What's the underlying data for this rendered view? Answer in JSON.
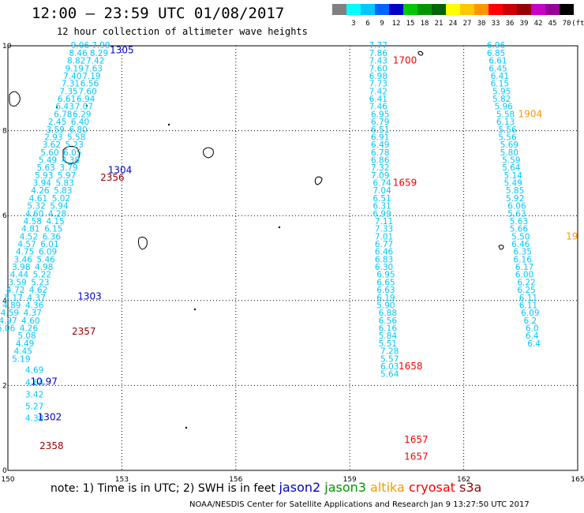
{
  "title": "12:00 – 23:59 UTC 01/08/2017",
  "subtitle": "12 hour collection of altimeter wave heights",
  "colorbar": {
    "unit_label": "(ft)",
    "swatches": [
      {
        "label": "",
        "color": "#808080"
      },
      {
        "label": "3",
        "color": "#00ffff"
      },
      {
        "label": "6",
        "color": "#00c8ff"
      },
      {
        "label": "9",
        "color": "#0064ff"
      },
      {
        "label": "12",
        "color": "#0000c8"
      },
      {
        "label": "15",
        "color": "#00c800"
      },
      {
        "label": "18",
        "color": "#009600"
      },
      {
        "label": "21",
        "color": "#006400"
      },
      {
        "label": "24",
        "color": "#ffff00"
      },
      {
        "label": "27",
        "color": "#ffc800"
      },
      {
        "label": "30",
        "color": "#ff9600"
      },
      {
        "label": "33",
        "color": "#ff0000"
      },
      {
        "label": "36",
        "color": "#c80000"
      },
      {
        "label": "39",
        "color": "#960000"
      },
      {
        "label": "42",
        "color": "#c800c8"
      },
      {
        "label": "45",
        "color": "#960096"
      },
      {
        "label": "70",
        "color": "#000000"
      }
    ]
  },
  "axes": {
    "x_ticks": [
      "150",
      "153",
      "156",
      "159",
      "162",
      "165"
    ],
    "y_ticks": [
      "0",
      "2",
      "4",
      "6",
      "8",
      "10"
    ],
    "x_range": [
      150,
      165
    ],
    "y_range": [
      0,
      10
    ]
  },
  "tracks": [
    {
      "name": "western",
      "color": "#00c8ff",
      "points": [
        {
          "lon": 152.45,
          "lat": 9.94,
          "v": "7.99"
        },
        {
          "lon": 152.4,
          "lat": 9.76,
          "v": "8.29"
        },
        {
          "lon": 152.3,
          "lat": 9.58,
          "v": "7.42"
        },
        {
          "lon": 152.25,
          "lat": 9.4,
          "v": "7.63"
        },
        {
          "lon": 152.2,
          "lat": 9.22,
          "v": "7.19"
        },
        {
          "lon": 152.15,
          "lat": 9.04,
          "v": "6.56"
        },
        {
          "lon": 152.1,
          "lat": 8.86,
          "v": "7.60"
        },
        {
          "lon": 152.05,
          "lat": 8.68,
          "v": "6.94"
        },
        {
          "lon": 152.0,
          "lat": 8.5,
          "v": "7.07"
        },
        {
          "lon": 151.95,
          "lat": 8.32,
          "v": "6.29"
        },
        {
          "lon": 151.9,
          "lat": 8.14,
          "v": "6.40"
        },
        {
          "lon": 151.85,
          "lat": 7.96,
          "v": "6.80"
        },
        {
          "lon": 151.8,
          "lat": 7.78,
          "v": "5.58"
        },
        {
          "lon": 151.75,
          "lat": 7.6,
          "v": "5.23"
        },
        {
          "lon": 151.7,
          "lat": 7.42,
          "v": "6.05"
        },
        {
          "lon": 151.65,
          "lat": 7.24,
          "v": "4.38"
        },
        {
          "lon": 151.6,
          "lat": 7.06,
          "v": "3.79"
        },
        {
          "lon": 151.55,
          "lat": 6.88,
          "v": "5.97"
        },
        {
          "lon": 151.5,
          "lat": 6.7,
          "v": "5.83"
        },
        {
          "lon": 151.45,
          "lat": 6.52,
          "v": "5.83"
        },
        {
          "lon": 151.4,
          "lat": 6.34,
          "v": "5.02"
        },
        {
          "lon": 151.35,
          "lat": 6.16,
          "v": "5.94"
        },
        {
          "lon": 151.3,
          "lat": 5.98,
          "v": "4.28"
        },
        {
          "lon": 151.25,
          "lat": 5.8,
          "v": "4.15"
        },
        {
          "lon": 151.2,
          "lat": 5.62,
          "v": "6.15"
        },
        {
          "lon": 151.15,
          "lat": 5.44,
          "v": "6.36"
        },
        {
          "lon": 151.1,
          "lat": 5.26,
          "v": "6.01"
        },
        {
          "lon": 151.05,
          "lat": 5.08,
          "v": "6.09"
        },
        {
          "lon": 151.0,
          "lat": 4.9,
          "v": "5.46"
        },
        {
          "lon": 150.95,
          "lat": 4.72,
          "v": "4.98"
        },
        {
          "lon": 150.9,
          "lat": 4.54,
          "v": "5.22"
        },
        {
          "lon": 150.85,
          "lat": 4.36,
          "v": "5.23"
        },
        {
          "lon": 150.8,
          "lat": 4.18,
          "v": "4.62"
        },
        {
          "lon": 150.75,
          "lat": 4.0,
          "v": "4.37"
        },
        {
          "lon": 150.7,
          "lat": 3.82,
          "v": "4.36"
        },
        {
          "lon": 150.65,
          "lat": 3.64,
          "v": "4.37"
        },
        {
          "lon": 150.6,
          "lat": 3.46,
          "v": "4.60"
        },
        {
          "lon": 150.55,
          "lat": 3.28,
          "v": "4.26"
        },
        {
          "lon": 150.5,
          "lat": 3.1,
          "v": "5.08"
        },
        {
          "lon": 150.45,
          "lat": 2.92,
          "v": "4.49"
        },
        {
          "lon": 150.4,
          "lat": 2.74,
          "v": "4.45"
        },
        {
          "lon": 150.35,
          "lat": 2.56,
          "v": "5.19"
        },
        {
          "lon": 150.7,
          "lat": 2.3,
          "v": "4.69"
        },
        {
          "lon": 150.7,
          "lat": 2.0,
          "v": "4.64"
        },
        {
          "lon": 150.7,
          "lat": 1.72,
          "v": "3.42"
        },
        {
          "lon": 150.7,
          "lat": 1.44,
          "v": "5.27"
        },
        {
          "lon": 150.7,
          "lat": 1.16,
          "v": "4.38"
        }
      ]
    },
    {
      "name": "western-2",
      "color": "#00c8ff",
      "points": [
        {
          "lon": 151.9,
          "lat": 9.94,
          "v": "9.06"
        },
        {
          "lon": 151.85,
          "lat": 9.76,
          "v": "8.46"
        },
        {
          "lon": 151.8,
          "lat": 9.58,
          "v": "8.82"
        },
        {
          "lon": 151.75,
          "lat": 9.4,
          "v": "9.19"
        },
        {
          "lon": 151.7,
          "lat": 9.22,
          "v": "7.40"
        },
        {
          "lon": 151.65,
          "lat": 9.04,
          "v": "7.31"
        },
        {
          "lon": 151.6,
          "lat": 8.86,
          "v": "7.35"
        },
        {
          "lon": 151.55,
          "lat": 8.68,
          "v": "6.61"
        },
        {
          "lon": 151.5,
          "lat": 8.5,
          "v": "6.43"
        },
        {
          "lon": 151.45,
          "lat": 8.32,
          "v": "6.78"
        },
        {
          "lon": 151.3,
          "lat": 8.14,
          "v": "2.45"
        },
        {
          "lon": 151.25,
          "lat": 7.96,
          "v": "3.59"
        },
        {
          "lon": 151.2,
          "lat": 7.78,
          "v": "2.93"
        },
        {
          "lon": 151.15,
          "lat": 7.6,
          "v": "3.62"
        },
        {
          "lon": 151.1,
          "lat": 7.42,
          "v": "5.60"
        },
        {
          "lon": 151.05,
          "lat": 7.24,
          "v": "5.49"
        },
        {
          "lon": 151.0,
          "lat": 7.06,
          "v": "5.63"
        },
        {
          "lon": 150.95,
          "lat": 6.88,
          "v": "5.93"
        },
        {
          "lon": 150.9,
          "lat": 6.7,
          "v": "3.94"
        },
        {
          "lon": 150.85,
          "lat": 6.52,
          "v": "4.26"
        },
        {
          "lon": 150.8,
          "lat": 6.34,
          "v": "4.61"
        },
        {
          "lon": 150.75,
          "lat": 6.16,
          "v": "5.32"
        },
        {
          "lon": 150.7,
          "lat": 5.98,
          "v": "4.60"
        },
        {
          "lon": 150.65,
          "lat": 5.8,
          "v": "4.58"
        },
        {
          "lon": 150.6,
          "lat": 5.62,
          "v": "4.81"
        },
        {
          "lon": 150.55,
          "lat": 5.44,
          "v": "4.52"
        },
        {
          "lon": 150.5,
          "lat": 5.26,
          "v": "4.57"
        },
        {
          "lon": 150.45,
          "lat": 5.08,
          "v": "4.75"
        },
        {
          "lon": 150.4,
          "lat": 4.9,
          "v": "3.46"
        },
        {
          "lon": 150.35,
          "lat": 4.72,
          "v": "3.98"
        },
        {
          "lon": 150.3,
          "lat": 4.54,
          "v": "4.44"
        },
        {
          "lon": 150.25,
          "lat": 4.36,
          "v": "3.59"
        },
        {
          "lon": 150.2,
          "lat": 4.18,
          "v": "4.72"
        },
        {
          "lon": 150.15,
          "lat": 4.0,
          "v": "5.17"
        },
        {
          "lon": 150.1,
          "lat": 3.82,
          "v": "4.89"
        },
        {
          "lon": 150.05,
          "lat": 3.64,
          "v": "4.59"
        },
        {
          "lon": 150.0,
          "lat": 3.46,
          "v": "4.97"
        },
        {
          "lon": 149.95,
          "lat": 3.28,
          "v": "6.06"
        }
      ]
    },
    {
      "name": "center",
      "color": "#00c8ff",
      "points": [
        {
          "lon": 159.75,
          "lat": 9.94,
          "v": "7.77"
        },
        {
          "lon": 159.75,
          "lat": 9.76,
          "v": "7.86"
        },
        {
          "lon": 159.75,
          "lat": 9.58,
          "v": "7.43"
        },
        {
          "lon": 159.75,
          "lat": 9.4,
          "v": "7.60"
        },
        {
          "lon": 159.75,
          "lat": 9.22,
          "v": "6.98"
        },
        {
          "lon": 159.75,
          "lat": 9.04,
          "v": "7.73"
        },
        {
          "lon": 159.75,
          "lat": 8.86,
          "v": "7.42"
        },
        {
          "lon": 159.75,
          "lat": 8.68,
          "v": "6.41"
        },
        {
          "lon": 159.75,
          "lat": 8.5,
          "v": "7.46"
        },
        {
          "lon": 159.8,
          "lat": 8.32,
          "v": "6.95"
        },
        {
          "lon": 159.8,
          "lat": 8.14,
          "v": "6.79"
        },
        {
          "lon": 159.8,
          "lat": 7.96,
          "v": "6.51"
        },
        {
          "lon": 159.8,
          "lat": 7.78,
          "v": "6.91"
        },
        {
          "lon": 159.8,
          "lat": 7.6,
          "v": "6.49"
        },
        {
          "lon": 159.8,
          "lat": 7.42,
          "v": "6.78"
        },
        {
          "lon": 159.8,
          "lat": 7.24,
          "v": "6.86"
        },
        {
          "lon": 159.8,
          "lat": 7.06,
          "v": "7.32"
        },
        {
          "lon": 159.8,
          "lat": 6.88,
          "v": "7.09"
        },
        {
          "lon": 159.85,
          "lat": 6.7,
          "v": "6.74"
        },
        {
          "lon": 159.85,
          "lat": 6.52,
          "v": "7.04"
        },
        {
          "lon": 159.85,
          "lat": 6.34,
          "v": "6.51"
        },
        {
          "lon": 159.85,
          "lat": 6.16,
          "v": "6.31"
        },
        {
          "lon": 159.85,
          "lat": 5.98,
          "v": "6.99"
        },
        {
          "lon": 159.9,
          "lat": 5.8,
          "v": "7.11"
        },
        {
          "lon": 159.9,
          "lat": 5.62,
          "v": "7.33"
        },
        {
          "lon": 159.9,
          "lat": 5.44,
          "v": "7.01"
        },
        {
          "lon": 159.9,
          "lat": 5.26,
          "v": "6.77"
        },
        {
          "lon": 159.9,
          "lat": 5.08,
          "v": "6.46"
        },
        {
          "lon": 159.9,
          "lat": 4.9,
          "v": "6.83"
        },
        {
          "lon": 159.9,
          "lat": 4.72,
          "v": "6.30"
        },
        {
          "lon": 159.95,
          "lat": 4.54,
          "v": "6.95"
        },
        {
          "lon": 159.95,
          "lat": 4.36,
          "v": "6.65"
        },
        {
          "lon": 159.95,
          "lat": 4.18,
          "v": "6.63"
        },
        {
          "lon": 159.95,
          "lat": 4.0,
          "v": "6.19"
        },
        {
          "lon": 159.95,
          "lat": 3.82,
          "v": "5.90"
        },
        {
          "lon": 160.0,
          "lat": 3.64,
          "v": "6.88"
        },
        {
          "lon": 160.0,
          "lat": 3.46,
          "v": "6.56"
        },
        {
          "lon": 160.0,
          "lat": 3.28,
          "v": "6.16"
        },
        {
          "lon": 160.0,
          "lat": 3.1,
          "v": "5.84"
        },
        {
          "lon": 160.0,
          "lat": 2.92,
          "v": "5.51"
        },
        {
          "lon": 160.05,
          "lat": 2.74,
          "v": "7.28"
        },
        {
          "lon": 160.05,
          "lat": 2.56,
          "v": "5.57"
        },
        {
          "lon": 160.05,
          "lat": 2.38,
          "v": "6.03"
        },
        {
          "lon": 160.05,
          "lat": 2.2,
          "v": "5.64"
        }
      ]
    },
    {
      "name": "eastern",
      "color": "#00c8ff",
      "points": [
        {
          "lon": 162.85,
          "lat": 9.94,
          "v": "6.96"
        },
        {
          "lon": 162.85,
          "lat": 9.76,
          "v": "6.85"
        },
        {
          "lon": 162.9,
          "lat": 9.58,
          "v": "6.61"
        },
        {
          "lon": 162.9,
          "lat": 9.4,
          "v": "6.45"
        },
        {
          "lon": 162.95,
          "lat": 9.22,
          "v": "6.41"
        },
        {
          "lon": 162.95,
          "lat": 9.04,
          "v": "6.15"
        },
        {
          "lon": 163.0,
          "lat": 8.86,
          "v": "5.95"
        },
        {
          "lon": 163.0,
          "lat": 8.68,
          "v": "5.82"
        },
        {
          "lon": 163.05,
          "lat": 8.5,
          "v": "5.96"
        },
        {
          "lon": 163.1,
          "lat": 8.32,
          "v": "5.58"
        },
        {
          "lon": 163.1,
          "lat": 8.14,
          "v": "6.13"
        },
        {
          "lon": 163.15,
          "lat": 7.96,
          "v": "5.56"
        },
        {
          "lon": 163.15,
          "lat": 7.78,
          "v": "5.56"
        },
        {
          "lon": 163.2,
          "lat": 7.6,
          "v": "5.69"
        },
        {
          "lon": 163.2,
          "lat": 7.42,
          "v": "5.80"
        },
        {
          "lon": 163.25,
          "lat": 7.24,
          "v": "5.59"
        },
        {
          "lon": 163.25,
          "lat": 7.06,
          "v": "5.64"
        },
        {
          "lon": 163.3,
          "lat": 6.88,
          "v": "5.14"
        },
        {
          "lon": 163.3,
          "lat": 6.7,
          "v": "5.49"
        },
        {
          "lon": 163.35,
          "lat": 6.52,
          "v": "5.85"
        },
        {
          "lon": 163.35,
          "lat": 6.34,
          "v": "5.92"
        },
        {
          "lon": 163.4,
          "lat": 6.16,
          "v": "6.06"
        },
        {
          "lon": 163.4,
          "lat": 5.98,
          "v": "5.63"
        },
        {
          "lon": 163.45,
          "lat": 5.8,
          "v": "5.63"
        },
        {
          "lon": 163.45,
          "lat": 5.62,
          "v": "5.66"
        },
        {
          "lon": 163.5,
          "lat": 5.44,
          "v": "5.50"
        },
        {
          "lon": 163.5,
          "lat": 5.26,
          "v": "6.46"
        },
        {
          "lon": 163.55,
          "lat": 5.08,
          "v": "6.35"
        },
        {
          "lon": 163.55,
          "lat": 4.9,
          "v": "6.16"
        },
        {
          "lon": 163.6,
          "lat": 4.72,
          "v": "6.17"
        },
        {
          "lon": 163.6,
          "lat": 4.54,
          "v": "6.00"
        },
        {
          "lon": 163.65,
          "lat": 4.36,
          "v": "6.22"
        },
        {
          "lon": 163.65,
          "lat": 4.18,
          "v": "6.25"
        },
        {
          "lon": 163.7,
          "lat": 4.0,
          "v": "6.11"
        },
        {
          "lon": 163.7,
          "lat": 3.82,
          "v": "6.11"
        },
        {
          "lon": 163.75,
          "lat": 3.64,
          "v": "6.09"
        },
        {
          "lon": 163.75,
          "lat": 3.46,
          "v": "6.2"
        },
        {
          "lon": 163.8,
          "lat": 3.28,
          "v": "6.0"
        },
        {
          "lon": 163.8,
          "lat": 3.1,
          "v": "6.4"
        },
        {
          "lon": 163.85,
          "lat": 2.92,
          "v": "6.4"
        }
      ]
    }
  ],
  "time_labels": [
    {
      "text": "1305",
      "lon": 153.0,
      "lat": 9.82,
      "color": "#0000c8"
    },
    {
      "text": "1304",
      "lon": 152.95,
      "lat": 7.0,
      "color": "#0000c8"
    },
    {
      "text": "2356",
      "lon": 152.75,
      "lat": 6.82,
      "color": "#960000"
    },
    {
      "text": "1303",
      "lon": 152.15,
      "lat": 4.02,
      "color": "#0000c8"
    },
    {
      "text": "2357",
      "lon": 152.0,
      "lat": 3.2,
      "color": "#960000"
    },
    {
      "text": "10.97",
      "lon": 150.95,
      "lat": 2.02,
      "color": "#0000c8"
    },
    {
      "text": "1302",
      "lon": 151.1,
      "lat": 1.18,
      "color": "#0000c8"
    },
    {
      "text": "2358",
      "lon": 151.15,
      "lat": 0.5,
      "color": "#960000"
    },
    {
      "text": "1700",
      "lon": 160.45,
      "lat": 9.58,
      "color": "#ff0000"
    },
    {
      "text": "1659",
      "lon": 160.45,
      "lat": 6.7,
      "color": "#ff0000"
    },
    {
      "text": "1658",
      "lon": 160.6,
      "lat": 2.38,
      "color": "#ff0000"
    },
    {
      "text": "1657",
      "lon": 160.75,
      "lat": 0.65,
      "color": "#ff0000"
    },
    {
      "text": "1657",
      "lon": 160.75,
      "lat": 0.25,
      "color": "#ff0000"
    },
    {
      "text": "1904",
      "lon": 163.75,
      "lat": 8.32,
      "color": "#ff9600"
    },
    {
      "text": "19",
      "lon": 164.85,
      "lat": 5.44,
      "color": "#ff9600"
    }
  ],
  "legend": {
    "note": "note:  1) Time is in UTC;  2) SWH is in feet",
    "satellites": [
      {
        "label": "jason2",
        "color": "#0000c8"
      },
      {
        "label": "jason3",
        "color": "#009600"
      },
      {
        "label": "altika",
        "color": "#ff9600"
      },
      {
        "label": "cryosat",
        "color": "#ff0000"
      },
      {
        "label": "s3a",
        "color": "#960000"
      }
    ]
  },
  "credit": "NOAA/NESDIS Center for Satellite Applications and Research   Jan  9 13:27:50 UTC 2017"
}
